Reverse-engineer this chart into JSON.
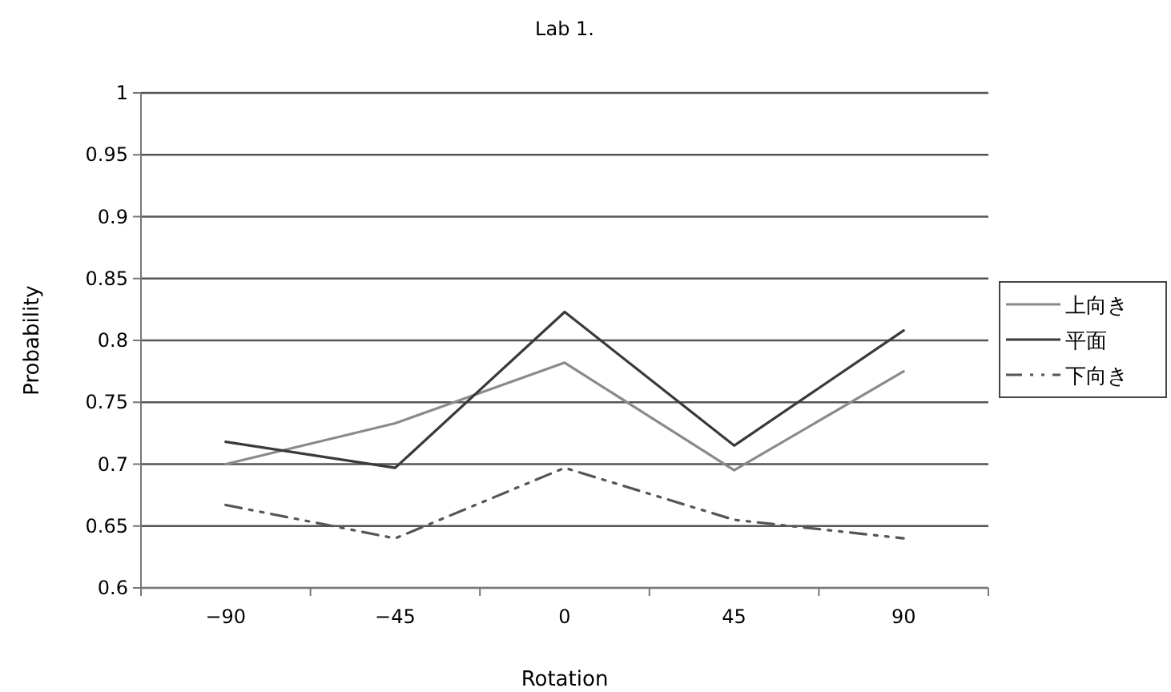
{
  "chart_data": {
    "type": "line",
    "title": "Lab 1.",
    "xlabel": "Rotation",
    "ylabel": "Probability",
    "categories": [
      "−90",
      "−45",
      "0",
      "45",
      "90"
    ],
    "series": [
      {
        "name": "上向き",
        "color": "#8a8a8a",
        "line_style": "solid",
        "values": [
          0.7,
          0.733,
          0.782,
          0.695,
          0.775
        ]
      },
      {
        "name": "平面",
        "color": "#3a3a3a",
        "line_style": "solid",
        "values": [
          0.718,
          0.697,
          0.823,
          0.715,
          0.808
        ]
      },
      {
        "name": "下向き",
        "color": "#555555",
        "line_style": "dashed",
        "values": [
          0.667,
          0.64,
          0.697,
          0.655,
          0.64
        ]
      }
    ],
    "ylim": [
      0.6,
      1
    ],
    "yticks": [
      0.6,
      0.65,
      0.7,
      0.75,
      0.8,
      0.85,
      0.9,
      0.95,
      1
    ],
    "grid": "y",
    "legend": "right",
    "marker": "none"
  }
}
